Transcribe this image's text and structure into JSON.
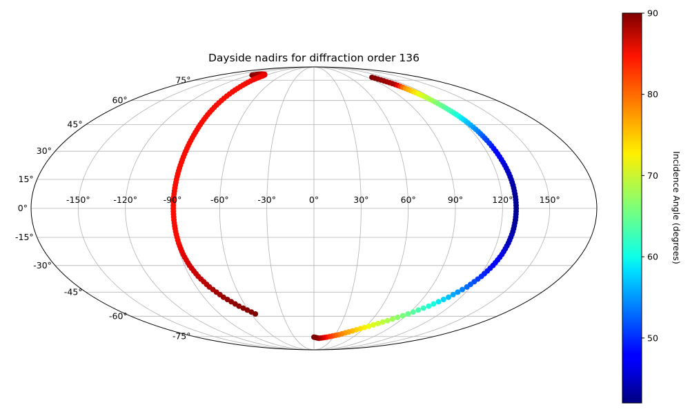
{
  "chart_data": {
    "type": "scatter",
    "projection": "mollweide",
    "title": "Dayside nadirs for diffraction order 136",
    "xlabel": "",
    "ylabel": "",
    "grid": true,
    "x_tick_labels": [
      "-150°",
      "-120°",
      "-90°",
      "-60°",
      "-30°",
      "0°",
      "30°",
      "60°",
      "90°",
      "120°",
      "150°"
    ],
    "x_tick_values": [
      -150,
      -120,
      -90,
      -60,
      -30,
      0,
      30,
      60,
      90,
      120,
      150
    ],
    "y_tick_labels": [
      "-75°",
      "-60°",
      "-45°",
      "-30°",
      "-15°",
      "0°",
      "15°",
      "30°",
      "45°",
      "60°",
      "75°"
    ],
    "y_tick_values": [
      -75,
      -60,
      -45,
      -30,
      -15,
      0,
      15,
      30,
      45,
      60,
      75
    ],
    "xlim": [
      -180,
      180
    ],
    "ylim": [
      -90,
      90
    ],
    "colorbar": {
      "label": "Incidence Angle (degrees)",
      "colormap": "jet",
      "range": [
        42,
        90
      ],
      "ticks": [
        50,
        60,
        70,
        80,
        90
      ],
      "tick_labels": [
        "50",
        "60",
        "70",
        "80",
        "90"
      ]
    },
    "series": [
      {
        "points": [
          [
            -117,
            79.5,
            90
          ],
          [
            -112,
            80.3,
            89
          ],
          [
            -106,
            80.6,
            88
          ],
          [
            -100,
            80.5,
            86.5
          ],
          [
            -95,
            79.8,
            86
          ],
          [
            -93,
            78.5,
            85.5
          ],
          [
            -93,
            75.5,
            85.2
          ],
          [
            -92,
            71,
            85
          ],
          [
            -91.5,
            66,
            85
          ],
          [
            -91,
            60,
            85
          ],
          [
            -90.5,
            54,
            85
          ],
          [
            -90,
            48,
            85
          ],
          [
            -89.5,
            42,
            85
          ],
          [
            -89.3,
            36,
            85
          ],
          [
            -89.2,
            30,
            85
          ],
          [
            -89.2,
            24,
            85
          ],
          [
            -89.3,
            18,
            85
          ],
          [
            -89.4,
            12,
            85
          ],
          [
            -89.5,
            6,
            85
          ],
          [
            -89.5,
            0,
            85
          ],
          [
            -89.4,
            -6,
            85
          ],
          [
            -89.2,
            -12,
            85
          ],
          [
            -88.8,
            -18,
            85
          ],
          [
            -88,
            -24,
            86
          ],
          [
            -86.5,
            -30,
            86.5
          ],
          [
            -84,
            -36,
            87
          ],
          [
            -80,
            -42,
            88
          ],
          [
            -74,
            -48,
            89
          ],
          [
            -66,
            -53.5,
            89.5
          ],
          [
            -56,
            -58.5,
            90
          ]
        ]
      },
      {
        "points": [
          [
            98,
            77.5,
            90
          ],
          [
            103,
            74.5,
            89
          ],
          [
            107,
            71.5,
            88
          ],
          [
            110,
            68.5,
            78
          ],
          [
            112.5,
            65.5,
            74
          ],
          [
            115,
            62,
            70
          ],
          [
            117.5,
            58,
            66
          ],
          [
            119.5,
            54,
            63
          ],
          [
            121.5,
            50,
            60
          ],
          [
            123,
            46,
            57
          ],
          [
            124.5,
            41,
            54
          ],
          [
            125.5,
            36,
            51
          ],
          [
            126.5,
            30,
            48
          ],
          [
            127.3,
            24,
            46
          ],
          [
            128,
            18,
            44.5
          ],
          [
            128.4,
            12,
            43.5
          ],
          [
            128.6,
            6,
            43
          ],
          [
            128.7,
            0,
            42.5
          ],
          [
            128.6,
            -6,
            43
          ],
          [
            128.3,
            -12,
            43.5
          ],
          [
            127.6,
            -18,
            44.5
          ],
          [
            126.5,
            -24,
            46
          ],
          [
            124.5,
            -30,
            48
          ],
          [
            121.5,
            -36,
            50
          ],
          [
            117,
            -42,
            53
          ],
          [
            110,
            -48,
            57
          ],
          [
            101,
            -53.5,
            61
          ],
          [
            90,
            -58.5,
            65
          ],
          [
            77,
            -63,
            69
          ],
          [
            63,
            -67,
            72.5
          ],
          [
            49,
            -70.5,
            76
          ],
          [
            35,
            -73.5,
            79.5
          ],
          [
            20,
            -75.5,
            84
          ],
          [
            8,
            -76.5,
            88
          ],
          [
            0,
            -75.5,
            90
          ]
        ]
      }
    ]
  }
}
